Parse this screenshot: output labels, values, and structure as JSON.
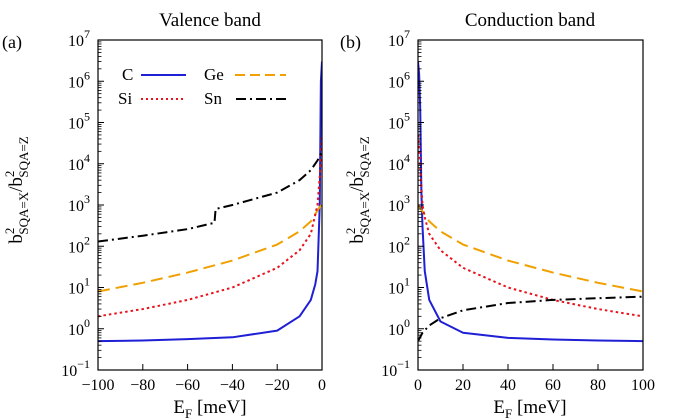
{
  "chart_data": [
    {
      "type": "line",
      "panel_label": "(a)",
      "title": "Valence band",
      "xlabel": {
        "main": "E",
        "sub": "F",
        "unit": " [meV]"
      },
      "ylabel": {
        "b1": "b",
        "sup1": "2",
        "sub1": "SQA=X",
        "slash": "/",
        "b2": "b",
        "sup2": "2",
        "sub2": "SQA=Z"
      },
      "xlim": [
        -100,
        0
      ],
      "ylim_log10": [
        -1,
        7
      ],
      "y_scale": "log",
      "x_ticks": [
        {
          "value": -100,
          "label": "−100"
        },
        {
          "value": -80,
          "label": "−80"
        },
        {
          "value": -60,
          "label": "−60"
        },
        {
          "value": -40,
          "label": "−40"
        },
        {
          "value": -20,
          "label": "−20"
        },
        {
          "value": 0,
          "label": "0"
        }
      ],
      "y_ticks": [
        {
          "exp": -1,
          "base": "10",
          "power": "−1"
        },
        {
          "exp": 0,
          "base": "10",
          "power": "0"
        },
        {
          "exp": 1,
          "base": "10",
          "power": "1"
        },
        {
          "exp": 2,
          "base": "10",
          "power": "2"
        },
        {
          "exp": 3,
          "base": "10",
          "power": "3"
        },
        {
          "exp": 4,
          "base": "10",
          "power": "4"
        },
        {
          "exp": 5,
          "base": "10",
          "power": "5"
        },
        {
          "exp": 6,
          "base": "10",
          "power": "6"
        },
        {
          "exp": 7,
          "base": "10",
          "power": "7"
        }
      ],
      "grid": false,
      "legend_position": "top-left",
      "series": [
        {
          "name": "C",
          "color": "#1f1fd6",
          "dash": "solid",
          "x": [
            -100,
            -80,
            -60,
            -40,
            -20,
            -10,
            -5,
            -3,
            -2,
            -1,
            -0.5,
            0
          ],
          "y": [
            0.5,
            0.52,
            0.56,
            0.62,
            0.9,
            2,
            5,
            12,
            25,
            1000,
            1000000,
            3000000
          ]
        },
        {
          "name": "Ge",
          "color": "#f0a000",
          "dash": "long",
          "x": [
            -100,
            -80,
            -60,
            -40,
            -20,
            -10,
            -5,
            -3,
            -1,
            0
          ],
          "y": [
            8,
            13,
            23,
            45,
            110,
            230,
            400,
            600,
            900,
            1000
          ]
        },
        {
          "name": "Si",
          "color": "#e8121c",
          "dash": "dot",
          "x": [
            -100,
            -80,
            -60,
            -40,
            -20,
            -10,
            -5,
            -2,
            -1,
            0
          ],
          "y": [
            2,
            3,
            5,
            10,
            30,
            80,
            200,
            1000,
            5000,
            50000
          ]
        },
        {
          "name": "Sn",
          "color": "#000000",
          "dash": "dashdot",
          "x": [
            -100,
            -80,
            -60,
            -48,
            -47.5,
            -40,
            -20,
            -10,
            -5,
            -2,
            0
          ],
          "y": [
            130,
            180,
            260,
            370,
            800,
            1000,
            2000,
            4000,
            7000,
            12000,
            20000
          ]
        }
      ],
      "legend": [
        {
          "name": "C",
          "color": "#1f1fd6",
          "dash": "solid"
        },
        {
          "name": "Ge",
          "color": "#f0a000",
          "dash": "long"
        },
        {
          "name": "Si",
          "color": "#e8121c",
          "dash": "dot"
        },
        {
          "name": "Sn",
          "color": "#000000",
          "dash": "dashdot"
        }
      ]
    },
    {
      "type": "line",
      "panel_label": "(b)",
      "title": "Conduction band",
      "xlabel": {
        "main": "E",
        "sub": "F",
        "unit": " [meV]"
      },
      "ylabel": {
        "b1": "b",
        "sup1": "2",
        "sub1": "SQA=X",
        "slash": "/",
        "b2": "b",
        "sup2": "2",
        "sub2": "SQA=Z"
      },
      "xlim": [
        0,
        100
      ],
      "ylim_log10": [
        -1,
        7
      ],
      "y_scale": "log",
      "x_ticks": [
        {
          "value": 0,
          "label": "0"
        },
        {
          "value": 20,
          "label": "20"
        },
        {
          "value": 40,
          "label": "40"
        },
        {
          "value": 60,
          "label": "60"
        },
        {
          "value": 80,
          "label": "80"
        },
        {
          "value": 100,
          "label": "100"
        }
      ],
      "y_ticks": [
        {
          "exp": -1,
          "base": "10",
          "power": "−1"
        },
        {
          "exp": 0,
          "base": "10",
          "power": "0"
        },
        {
          "exp": 1,
          "base": "10",
          "power": "1"
        },
        {
          "exp": 2,
          "base": "10",
          "power": "2"
        },
        {
          "exp": 3,
          "base": "10",
          "power": "3"
        },
        {
          "exp": 4,
          "base": "10",
          "power": "4"
        },
        {
          "exp": 5,
          "base": "10",
          "power": "5"
        },
        {
          "exp": 6,
          "base": "10",
          "power": "6"
        },
        {
          "exp": 7,
          "base": "10",
          "power": "7"
        }
      ],
      "grid": false,
      "series": [
        {
          "name": "C",
          "color": "#1f1fd6",
          "dash": "solid",
          "x": [
            0,
            0.5,
            1,
            1.5,
            2,
            3,
            5,
            10,
            20,
            40,
            60,
            80,
            100
          ],
          "y": [
            3000000,
            1500000,
            200000,
            2000,
            300,
            25,
            5,
            1.5,
            0.8,
            0.6,
            0.55,
            0.52,
            0.5
          ]
        },
        {
          "name": "Ge",
          "color": "#f0a000",
          "dash": "long",
          "x": [
            0,
            2,
            5,
            10,
            20,
            40,
            60,
            80,
            100
          ],
          "y": [
            1000,
            700,
            400,
            230,
            110,
            45,
            23,
            13,
            8
          ]
        },
        {
          "name": "Si",
          "color": "#e8121c",
          "dash": "dot",
          "x": [
            0,
            0.5,
            1,
            2,
            3,
            5,
            10,
            20,
            40,
            60,
            80,
            100
          ],
          "y": [
            50000,
            30000,
            8000,
            1000,
            500,
            200,
            80,
            30,
            10,
            5,
            3,
            2
          ]
        },
        {
          "name": "Sn",
          "color": "#000000",
          "dash": "dashdot",
          "x": [
            0,
            2,
            5,
            10,
            20,
            40,
            60,
            80,
            100
          ],
          "y": [
            0.5,
            0.8,
            1.2,
            1.8,
            2.8,
            4.2,
            5,
            5.5,
            6
          ]
        }
      ]
    }
  ]
}
